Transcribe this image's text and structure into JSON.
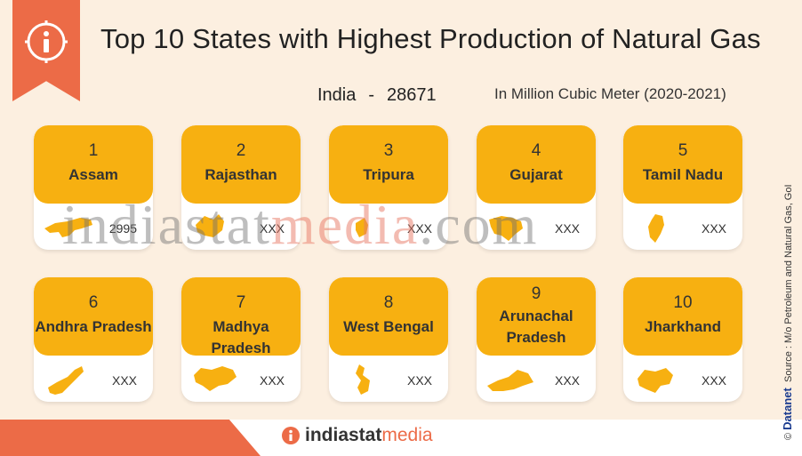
{
  "header": {
    "title": "Top 10 States with Highest Production of Natural Gas",
    "total_label": "India",
    "total_value": "28671",
    "unit": "In Million Cubic Meter (2020-2021)"
  },
  "chart_data": {
    "type": "table",
    "title": "Top 10 States with Highest Production of Natural Gas",
    "subtitle": "In Million Cubic Meter (2020-2021)",
    "total": {
      "label": "India",
      "value": 28671
    },
    "rows": [
      {
        "rank": "1",
        "state": "Assam",
        "value": "2995"
      },
      {
        "rank": "2",
        "state": "Rajasthan",
        "value": "XXX"
      },
      {
        "rank": "3",
        "state": "Tripura",
        "value": "XXX"
      },
      {
        "rank": "4",
        "state": "Gujarat",
        "value": "XXX"
      },
      {
        "rank": "5",
        "state": "Tamil Nadu",
        "value": "XXX"
      },
      {
        "rank": "6",
        "state": "Andhra Pradesh",
        "value": "XXX"
      },
      {
        "rank": "7",
        "state": "Madhya Pradesh",
        "value": "XXX"
      },
      {
        "rank": "8",
        "state": "West Bengal",
        "value": "XXX"
      },
      {
        "rank": "9",
        "state": "Arunachal Pradesh",
        "value": "XXX"
      },
      {
        "rank": "10",
        "state": "Jharkhand",
        "value": "XXX"
      }
    ]
  },
  "watermark": {
    "part1": "indiastat",
    "part2": "media",
    "part3": ".com"
  },
  "footer": {
    "logo_part1": "indiastat",
    "logo_part2": "media",
    "source_brand": "Datanet",
    "source_text": "Source : M/o Petroleum and Natural Gas, GoI",
    "copyright": "©"
  },
  "colors": {
    "background": "#fcefe0",
    "accent": "#ec6b47",
    "card_header": "#f7b011",
    "map_fill": "#f7b011",
    "card_body": "#ffffff"
  },
  "icons": {
    "info": "info-icon",
    "state_map": "state-map-icon"
  }
}
